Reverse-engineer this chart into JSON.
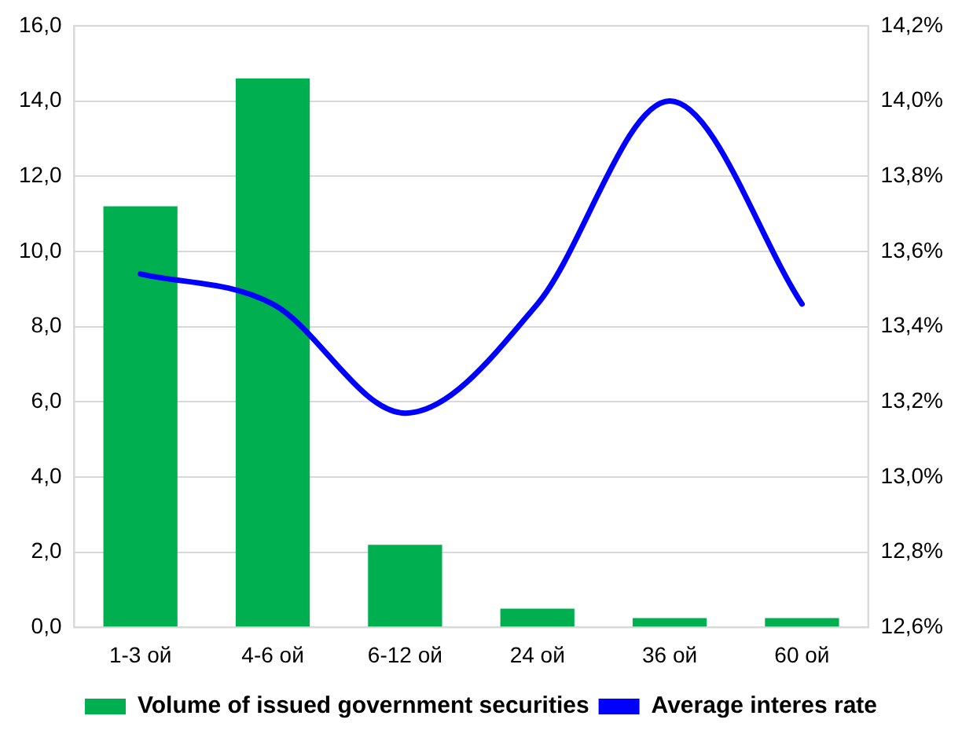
{
  "chart_data": {
    "type": "bar",
    "categories": [
      "1-3 ой",
      "4-6 ой",
      "6-12 ой",
      "24 ой",
      "36 ой",
      "60 ой"
    ],
    "series": [
      {
        "name": "Volume of issued government securities",
        "color": "#00b050",
        "values": [
          11.2,
          14.6,
          2.2,
          0.5,
          0.25,
          0.25
        ]
      },
      {
        "name": "Average interes rate",
        "type": "line",
        "axis": "y2",
        "color": "#0000ff",
        "marker": "none",
        "values": [
          13.54,
          13.46,
          13.17,
          13.46,
          14.0,
          13.46
        ]
      }
    ],
    "ylim": [
      0,
      16
    ],
    "yticks": [
      {
        "value": 0,
        "label": "0,0"
      },
      {
        "value": 2,
        "label": "2,0"
      },
      {
        "value": 4,
        "label": "4,0"
      },
      {
        "value": 6,
        "label": "6,0"
      },
      {
        "value": 8,
        "label": "8,0"
      },
      {
        "value": 10,
        "label": "10,0"
      },
      {
        "value": 12,
        "label": "12,0"
      },
      {
        "value": 14,
        "label": "14,0"
      },
      {
        "value": 16,
        "label": "16,0"
      }
    ],
    "y2lim": [
      12.6,
      14.2
    ],
    "y2ticks": [
      {
        "value": 12.6,
        "label": "12,6%"
      },
      {
        "value": 12.8,
        "label": "12,8%"
      },
      {
        "value": 13.0,
        "label": "13,0%"
      },
      {
        "value": 13.2,
        "label": "13,2%"
      },
      {
        "value": 13.4,
        "label": "13,4%"
      },
      {
        "value": 13.6,
        "label": "13,6%"
      },
      {
        "value": 13.8,
        "label": "13,8%"
      },
      {
        "value": 14.0,
        "label": "14,0%"
      },
      {
        "value": 14.2,
        "label": "14,2%"
      }
    ],
    "grid": "y",
    "legend": "bottom"
  }
}
